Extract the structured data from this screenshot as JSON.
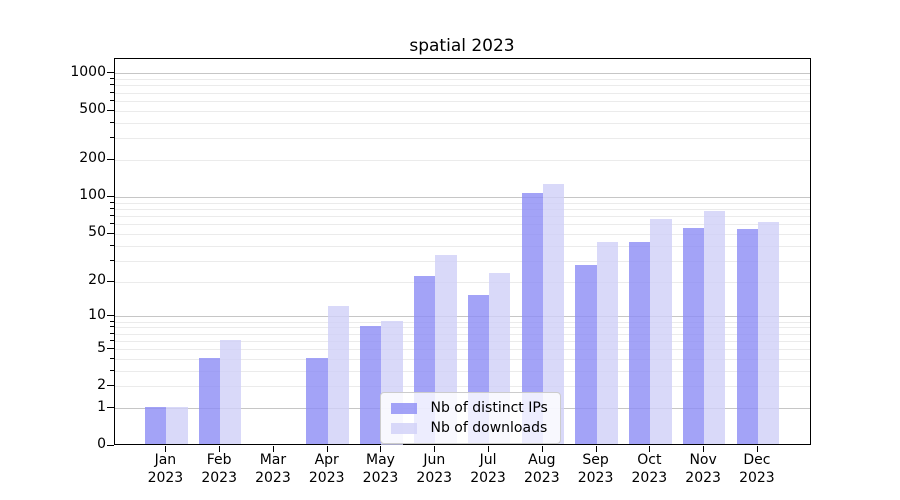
{
  "figure": {
    "title": "spatial 2023",
    "background": "#ffffff"
  },
  "legend": {
    "position": "lower center",
    "items": [
      {
        "label": "Nb of distinct IPs",
        "color": "rgba(140,140,245,0.8)"
      },
      {
        "label": "Nb of downloads",
        "color": "rgba(208,208,248,0.8)"
      }
    ]
  },
  "chart_data": {
    "type": "bar",
    "title": "spatial 2023",
    "categories": [
      "Jan 2023",
      "Feb 2023",
      "Mar 2023",
      "Apr 2023",
      "May 2023",
      "Jun 2023",
      "Jul 2023",
      "Aug 2023",
      "Sep 2023",
      "Oct 2023",
      "Nov 2023",
      "Dec 2023"
    ],
    "x_tick_top_lines": [
      "Jan",
      "Feb",
      "Mar",
      "Apr",
      "May",
      "Jun",
      "Jul",
      "Aug",
      "Sep",
      "Oct",
      "Nov",
      "Dec"
    ],
    "x_tick_bottom_line": "2023",
    "series": [
      {
        "name": "Nb of distinct IPs",
        "color": "rgba(140,140,245,0.8)",
        "values": [
          1,
          4,
          0,
          4,
          8,
          22,
          15,
          105,
          27,
          42,
          55,
          54
        ]
      },
      {
        "name": "Nb of downloads",
        "color": "rgba(208,208,248,0.8)",
        "values": [
          1,
          6,
          0,
          12,
          9,
          33,
          23,
          125,
          42,
          65,
          76,
          61
        ]
      }
    ],
    "xlabel": "",
    "ylabel": "",
    "y_scale": "log10(1+value)",
    "ylim": [
      0,
      1300
    ],
    "y_tick_values": [
      0,
      1,
      2,
      5,
      10,
      20,
      50,
      100,
      200,
      500,
      1000
    ],
    "y_tick_labels": [
      "0",
      "1",
      "2",
      "5",
      "10",
      "20",
      "50",
      "100",
      "200",
      "500",
      "1000"
    ],
    "y_major_gridlines": [
      1,
      10,
      100,
      1000
    ],
    "y_minor_gridlines": [
      2,
      3,
      4,
      5,
      6,
      7,
      8,
      9,
      20,
      30,
      40,
      50,
      60,
      70,
      80,
      90,
      200,
      300,
      400,
      500,
      600,
      700,
      800,
      900
    ],
    "grid": true,
    "legend_position": "lower center",
    "colors": {
      "major_grid": "#c6c6c6",
      "minor_grid": "#ebebeb",
      "axis": "#000000",
      "series_1": "rgba(140,140,245,0.8)",
      "series_2": "rgba(208,208,248,0.8)"
    }
  }
}
